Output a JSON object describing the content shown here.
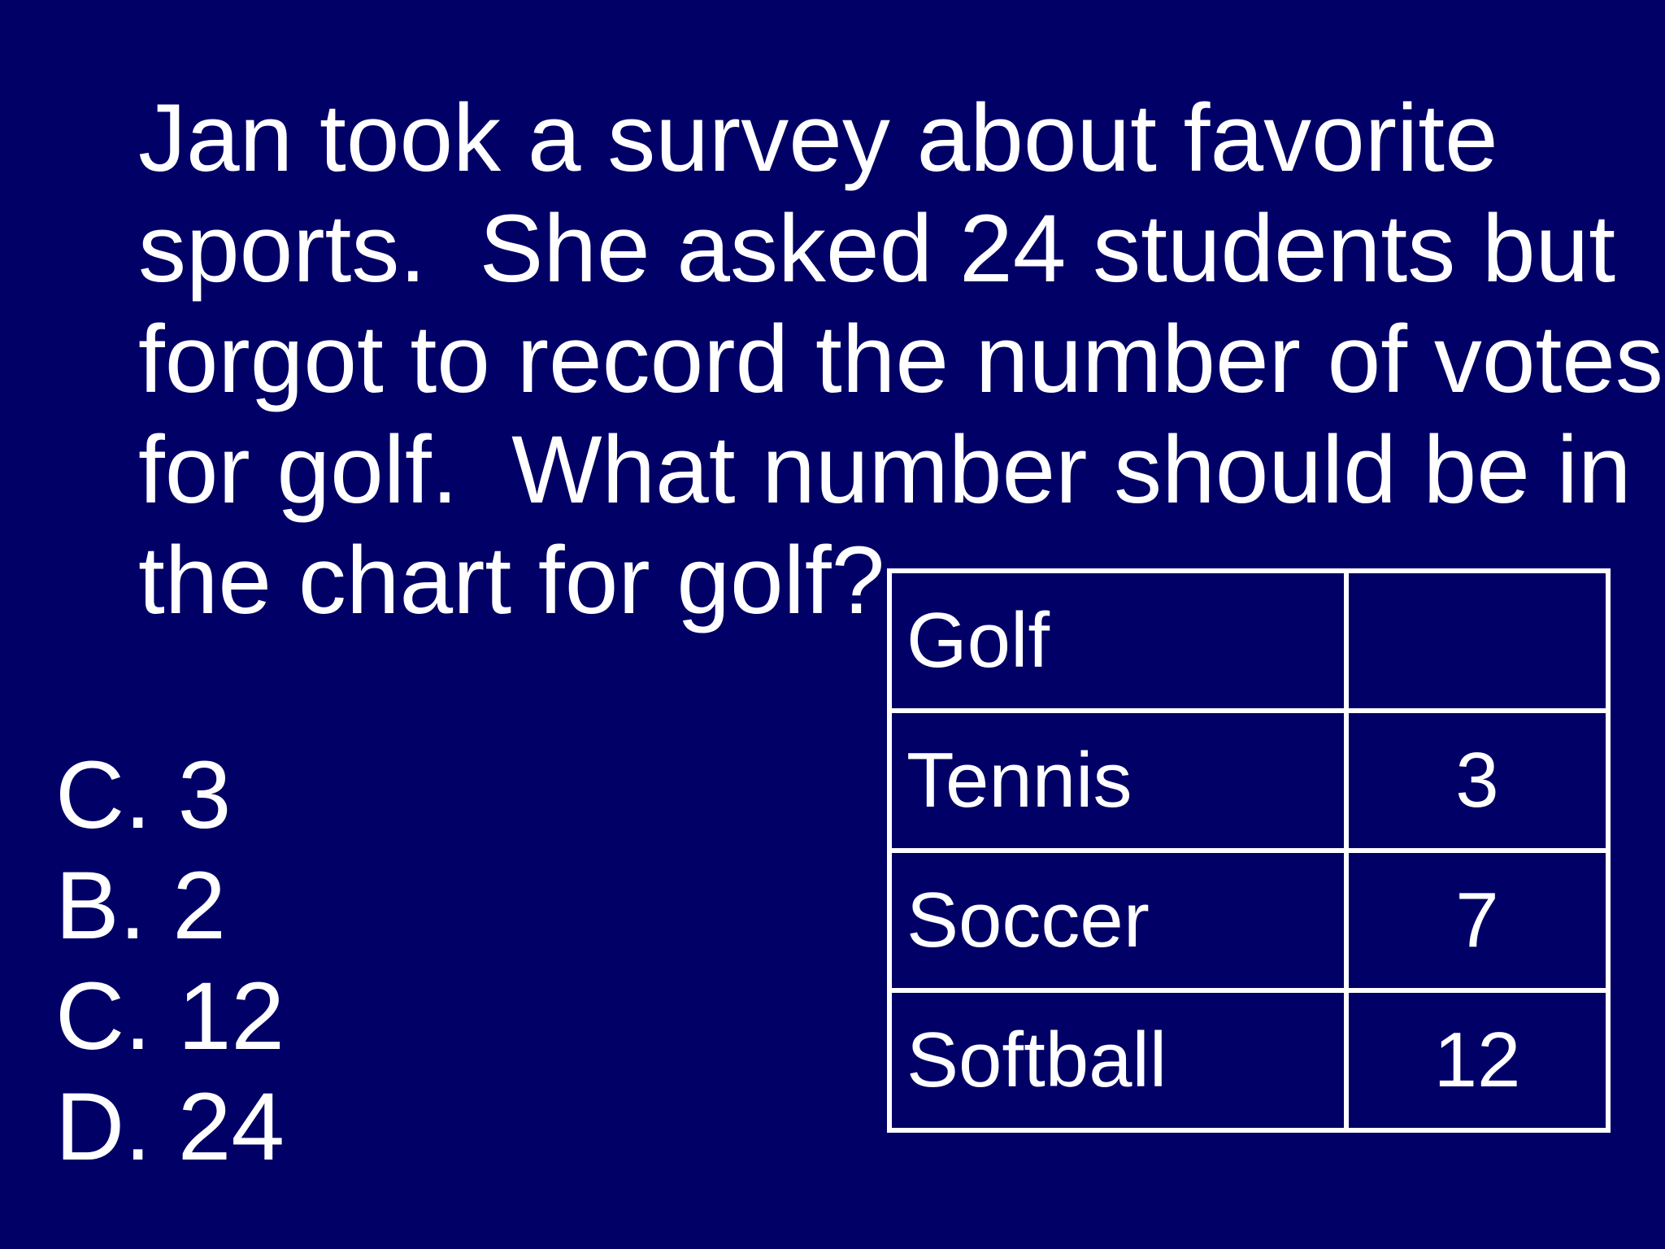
{
  "slide": {
    "background_color": "#000066",
    "text_color": "#ffffff",
    "question_lines": [
      "Jan took a survey about favorite",
      "sports.  She asked 24 students but",
      "forgot to record the number of votes",
      "for golf.  What number should be in",
      "the chart for golf?"
    ],
    "answers": [
      "C. 3",
      "B. 2",
      "C. 12",
      "D. 24"
    ],
    "table": {
      "rows": [
        {
          "sport": "Golf",
          "votes": ""
        },
        {
          "sport": "Tennis",
          "votes": "3"
        },
        {
          "sport": "Soccer",
          "votes": "7"
        },
        {
          "sport": "Softball",
          "votes": "12"
        }
      ]
    }
  }
}
